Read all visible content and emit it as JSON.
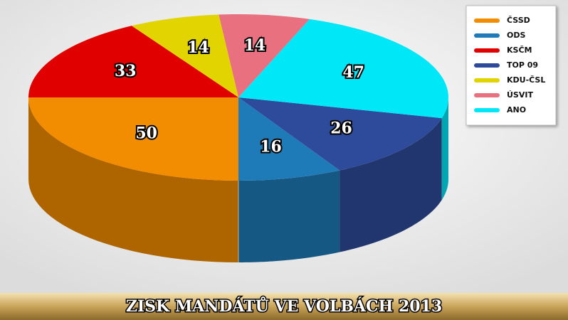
{
  "chart_data": {
    "type": "pie",
    "title": "ZISK MANDÁTŮ VE VOLBÁCH 2013",
    "categories": [
      "ČSSD",
      "ODS",
      "KSČM",
      "TOP 09",
      "KDU-ČSL",
      "ÚSVIT",
      "ANO"
    ],
    "values": [
      50,
      16,
      33,
      26,
      14,
      14,
      47
    ],
    "colors": [
      "#f28c00",
      "#1f7ab8",
      "#e00000",
      "#2e4a9a",
      "#e2d400",
      "#e8707f",
      "#00e8f8"
    ],
    "legend": "top-right"
  }
}
